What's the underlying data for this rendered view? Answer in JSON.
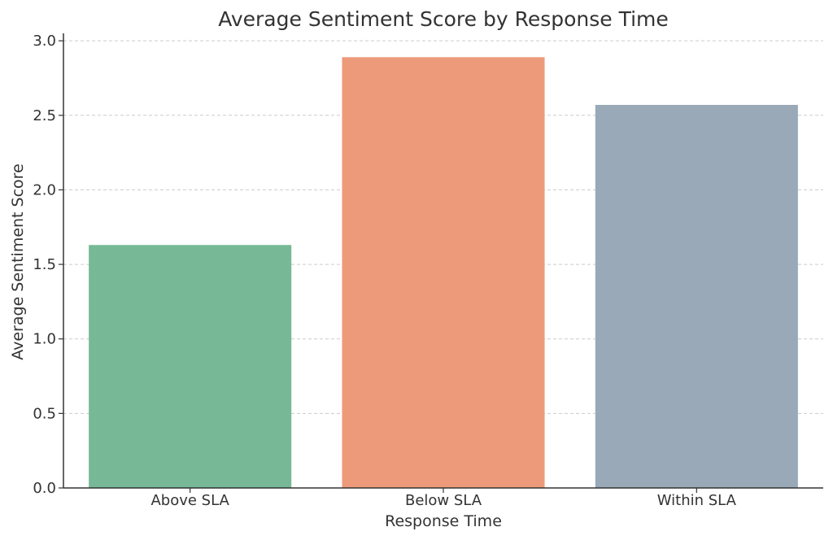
{
  "chart_data": {
    "type": "bar",
    "title": "Average Sentiment Score by Response Time",
    "xlabel": "Response Time",
    "ylabel": "Average Sentiment Score",
    "categories": [
      "Above SLA",
      "Below SLA",
      "Within SLA"
    ],
    "values": [
      1.63,
      2.89,
      2.57
    ],
    "colors": [
      "#77b996",
      "#ed9a7a",
      "#99a9b8"
    ],
    "ylim": [
      0,
      3.05
    ],
    "yticks": [
      0.0,
      0.5,
      1.0,
      1.5,
      2.0,
      2.5,
      3.0
    ],
    "ytick_labels": [
      "0.0",
      "0.5",
      "1.0",
      "1.5",
      "2.0",
      "2.5",
      "3.0"
    ],
    "grid": "y-dashed",
    "legend": "none"
  }
}
